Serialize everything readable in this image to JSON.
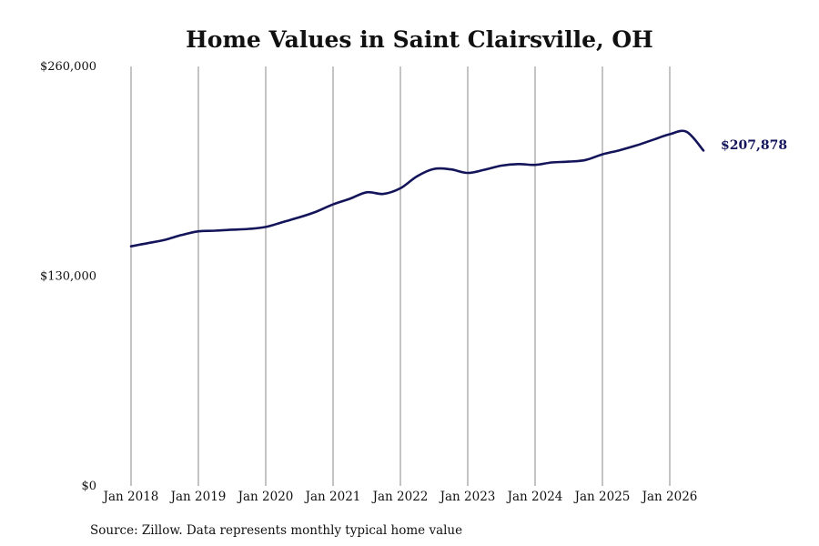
{
  "chart_data": {
    "type": "line",
    "title": "Home Values in Saint Clairsville, OH",
    "xlabel": "",
    "ylabel": "",
    "ylim": [
      0,
      260000
    ],
    "yticks": [
      0,
      130000,
      260000
    ],
    "ytick_labels": [
      "$0",
      "$130,000",
      "$260,000"
    ],
    "xticks": [
      "2018-01",
      "2019-01",
      "2020-01",
      "2021-01",
      "2022-01",
      "2023-01",
      "2024-01",
      "2025-01",
      "2026-01"
    ],
    "xtick_labels": [
      "Jan 2018",
      "Jan 2019",
      "Jan 2020",
      "Jan 2021",
      "Jan 2022",
      "Jan 2023",
      "Jan 2024",
      "Jan 2025",
      "Jan 2026"
    ],
    "grid": "vertical",
    "legend": "none",
    "line_color": "#14145a",
    "end_label": "$207,878",
    "series": [
      {
        "x": [
          "2018-01",
          "2018-04",
          "2018-07",
          "2018-10",
          "2019-01",
          "2019-04",
          "2019-07",
          "2019-10",
          "2020-01",
          "2020-04",
          "2020-07",
          "2020-10",
          "2021-01",
          "2021-04",
          "2021-07",
          "2021-10",
          "2022-01",
          "2022-04",
          "2022-07",
          "2022-10",
          "2023-01",
          "2023-04",
          "2023-07",
          "2023-10",
          "2024-01",
          "2024-04",
          "2024-07",
          "2024-10",
          "2025-01",
          "2025-04",
          "2025-07",
          "2025-10",
          "2026-01",
          "2026-04",
          "2026-07"
        ],
        "values": [
          148500,
          150500,
          152500,
          155500,
          157800,
          158200,
          158800,
          159300,
          160500,
          163500,
          166500,
          170000,
          174500,
          178000,
          182000,
          181000,
          184500,
          192000,
          196500,
          196200,
          194000,
          196000,
          198500,
          199500,
          199000,
          200500,
          201000,
          202000,
          205500,
          208000,
          211000,
          214500,
          218000,
          219500,
          207878
        ]
      }
    ]
  },
  "source_note": "Source: Zillow. Data represents monthly typical home value"
}
